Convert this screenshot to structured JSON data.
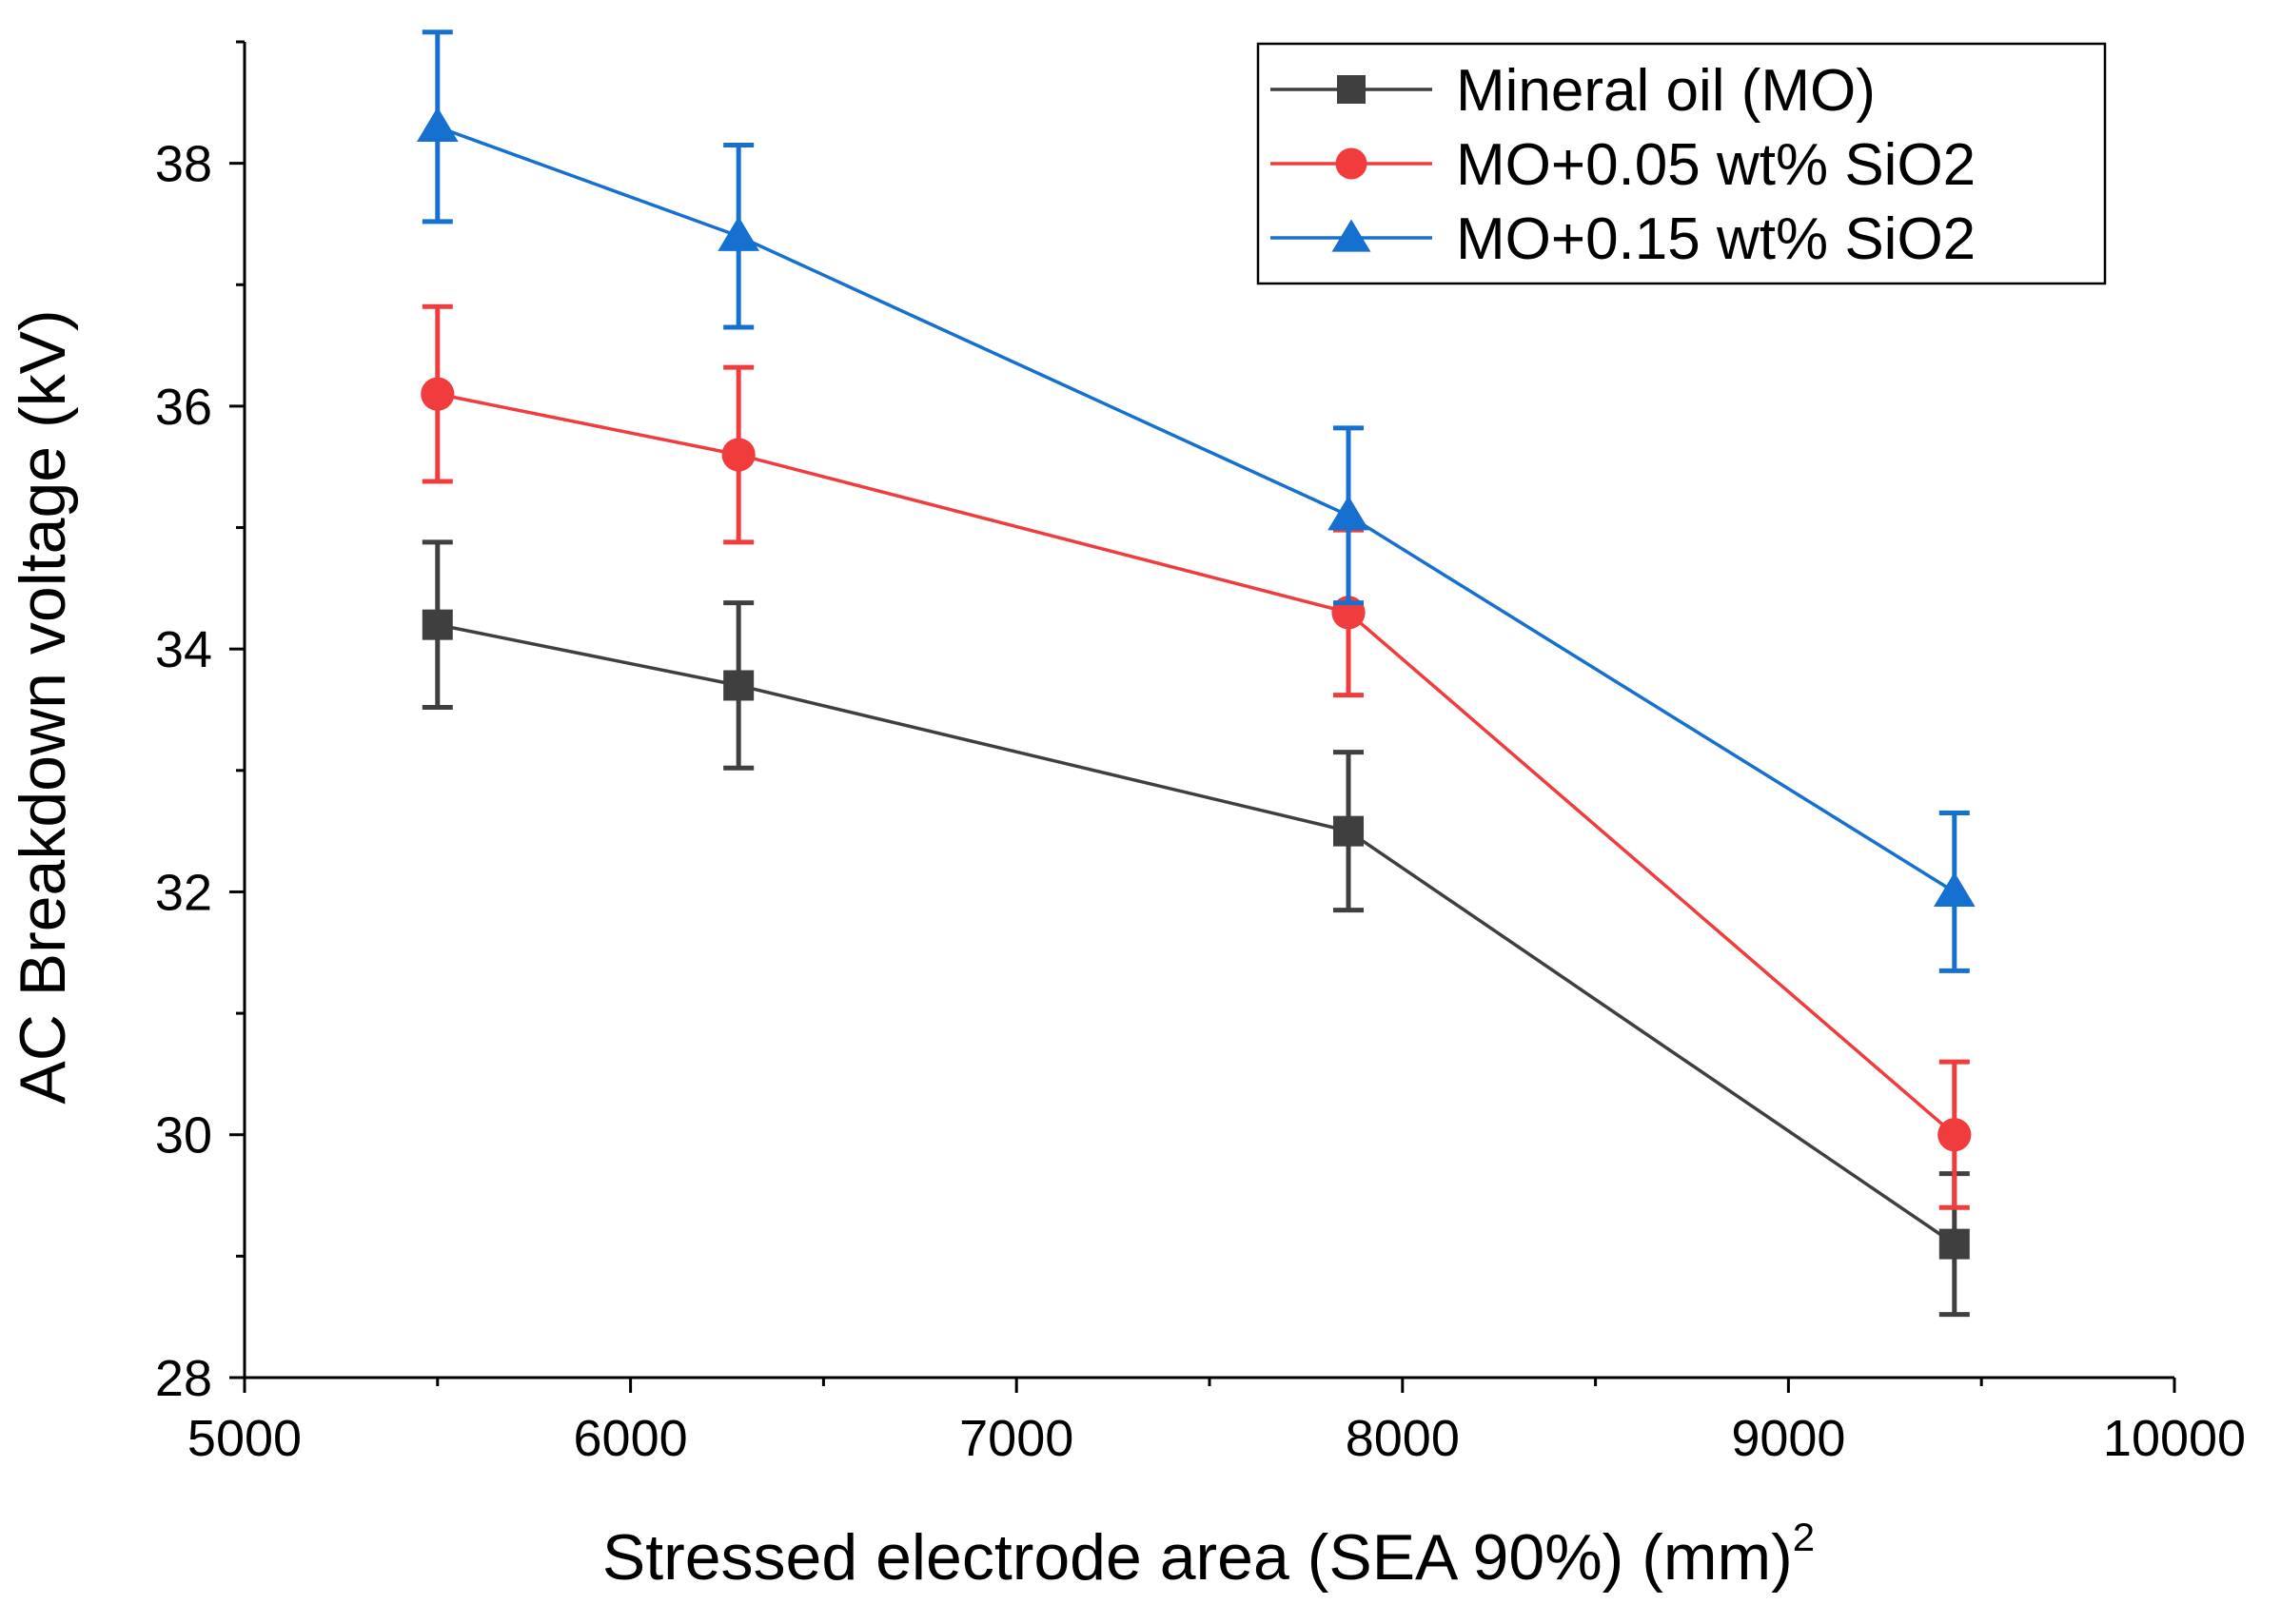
{
  "chart_data": {
    "type": "line",
    "title": "",
    "xlabel": "Stressed electrode area (SEA 90%) (mm)",
    "xlabel_superscript": "2",
    "ylabel": "AC Breakdown voltage (kV)",
    "xlim": [
      5000,
      10000
    ],
    "ylim": [
      28,
      39
    ],
    "x_ticks": [
      5000,
      6000,
      7000,
      8000,
      9000,
      10000
    ],
    "x_tick_labels": [
      "5000",
      "6000",
      "7000",
      "8000",
      "9000",
      "10000"
    ],
    "x_minor_ticks": [
      5500,
      6500,
      7500,
      8500,
      9500
    ],
    "y_ticks": [
      28,
      30,
      32,
      34,
      36,
      38
    ],
    "y_tick_labels": [
      "28",
      "30",
      "32",
      "34",
      "36",
      "38"
    ],
    "y_minor_ticks": [
      29,
      31,
      33,
      35,
      37,
      39
    ],
    "grid": false,
    "legend_position": "top-right",
    "x": [
      5500,
      6280,
      7860,
      9430
    ],
    "series": [
      {
        "name": "Mineral oil (MO)",
        "color": "#3f3f3f",
        "marker": "square",
        "values": [
          34.2,
          33.7,
          32.5,
          29.1
        ],
        "errors": [
          0.68,
          0.68,
          0.65,
          0.58
        ]
      },
      {
        "name": "MO+0.05 wt% SiO2",
        "color": "#f03c3c",
        "marker": "circle",
        "values": [
          36.1,
          35.6,
          34.3,
          30.0
        ],
        "errors": [
          0.72,
          0.72,
          0.68,
          0.6
        ]
      },
      {
        "name": "MO+0.15 wt% SiO2",
        "color": "#1670d0",
        "marker": "triangle",
        "values": [
          38.3,
          37.4,
          35.1,
          32.0
        ],
        "errors": [
          0.78,
          0.75,
          0.72,
          0.65
        ]
      }
    ]
  }
}
